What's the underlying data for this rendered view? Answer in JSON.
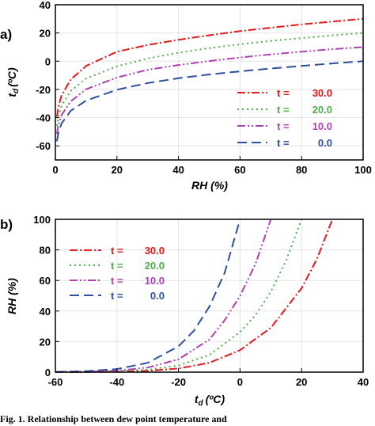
{
  "panels": [
    {
      "label": "a)",
      "xlabel": "RH (%)",
      "ylabel_main": "t",
      "ylabel_sub": "d",
      "ylabel_unit": "(ºC)"
    },
    {
      "label": "b)",
      "xlabel_main": "t",
      "xlabel_sub": "d",
      "xlabel_unit": "(ºC)",
      "ylabel": "RH (%)"
    }
  ],
  "legend_prefix": "t =",
  "caption": "Fig. 1. Relationship between dew point temperature and",
  "colors": {
    "t30": "#e41a1c",
    "t20": "#4daf4a",
    "t10": "#b040b0",
    "t0": "#2c4f9e"
  },
  "chart_data": [
    {
      "type": "line",
      "xlabel": "RH (%)",
      "ylabel": "td (ºC)",
      "xlim": [
        0,
        100
      ],
      "ylim": [
        -70,
        40
      ],
      "xticks": [
        0,
        20,
        40,
        60,
        80,
        100
      ],
      "yticks": [
        -60,
        -40,
        -20,
        0,
        20,
        40
      ],
      "legend_position": "lower-right",
      "series": [
        {
          "name": "30.0",
          "x": [
            0.5,
            1,
            2,
            5,
            10,
            20,
            30,
            40,
            50,
            60,
            70,
            80,
            90,
            100
          ],
          "y": [
            -39.4,
            -32.1,
            -24.2,
            -12.9,
            -3.3,
            6.7,
            11.5,
            15.2,
            18.4,
            21.3,
            23.7,
            26.1,
            28.1,
            30.0
          ]
        },
        {
          "name": "20.0",
          "x": [
            0.5,
            1,
            2,
            5,
            10,
            20,
            30,
            40,
            50,
            60,
            70,
            80,
            90,
            100
          ],
          "y": [
            -45.9,
            -39.0,
            -31.6,
            -21.0,
            -12.3,
            -3.6,
            1.9,
            6.0,
            9.3,
            12.0,
            14.4,
            16.4,
            18.3,
            20.0
          ]
        },
        {
          "name": "10.0",
          "x": [
            0.5,
            1,
            2,
            5,
            10,
            20,
            30,
            40,
            50,
            60,
            70,
            80,
            90,
            100
          ],
          "y": [
            -51.6,
            -45.0,
            -38.1,
            -28.4,
            -19.9,
            -11.6,
            -6.1,
            -2.7,
            0.1,
            2.6,
            4.8,
            6.7,
            8.5,
            10.0
          ]
        },
        {
          "name": "0.0",
          "x": [
            0.5,
            1,
            2,
            5,
            10,
            20,
            30,
            40,
            50,
            60,
            70,
            80,
            90,
            100
          ],
          "y": [
            -56.7,
            -50.6,
            -44.2,
            -35.1,
            -27.9,
            -20.2,
            -15.5,
            -12.1,
            -9.4,
            -7.2,
            -5.2,
            -3.4,
            -1.6,
            0.0
          ]
        }
      ]
    },
    {
      "type": "line",
      "xlabel": "td (ºC)",
      "ylabel": "RH (%)",
      "xlim": [
        -60,
        40
      ],
      "ylim": [
        0,
        100
      ],
      "xticks": [
        -60,
        -40,
        -20,
        0,
        20,
        40
      ],
      "yticks": [
        0,
        20,
        40,
        60,
        80,
        100
      ],
      "legend_position": "upper-left",
      "series": [
        {
          "name": "30.0",
          "x": [
            -60,
            -50,
            -40,
            -30,
            -20,
            -10,
            0,
            10,
            20,
            25,
            30
          ],
          "y": [
            0.03,
            0.1,
            0.3,
            0.9,
            2.4,
            6.1,
            14.4,
            29.0,
            54.9,
            74.1,
            100
          ]
        },
        {
          "name": "20.0",
          "x": [
            -60,
            -50,
            -40,
            -30,
            -20,
            -10,
            0,
            5,
            10,
            15,
            20
          ],
          "y": [
            0.05,
            0.2,
            0.6,
            1.6,
            4.4,
            11.2,
            26.2,
            37.3,
            52.6,
            73.2,
            100
          ]
        },
        {
          "name": "10.0",
          "x": [
            -60,
            -50,
            -40,
            -30,
            -20,
            -10,
            -5,
            0,
            5,
            10
          ],
          "y": [
            0.1,
            0.3,
            1.0,
            3.0,
            8.4,
            21.3,
            34.0,
            49.9,
            70.8,
            100
          ]
        },
        {
          "name": "0.0",
          "x": [
            -60,
            -50,
            -40,
            -30,
            -20,
            -15,
            -10,
            -5,
            0
          ],
          "y": [
            0.2,
            0.6,
            2.0,
            6.1,
            16.9,
            27.1,
            42.7,
            65.1,
            100
          ]
        }
      ]
    }
  ]
}
